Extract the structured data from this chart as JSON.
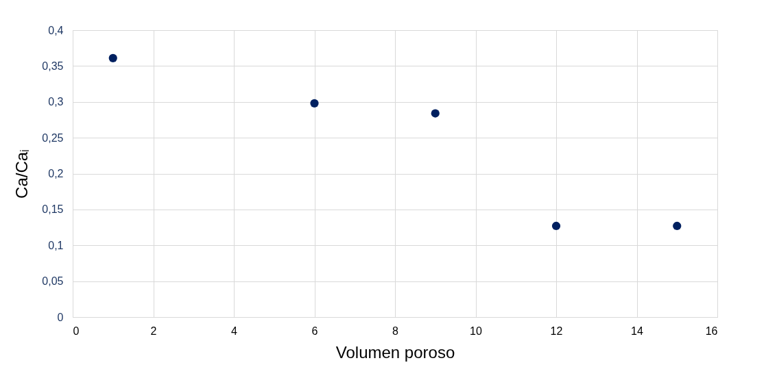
{
  "chart_data": {
    "type": "scatter",
    "xlabel": "Volumen poroso",
    "ylabel": "Ca/Caᵢ",
    "x": [
      1,
      6,
      9,
      12,
      15
    ],
    "series": [
      {
        "color": "#002060",
        "values": [
          0.361,
          0.298,
          0.284,
          0.127,
          0.127
        ]
      }
    ],
    "xlim": [
      0,
      16
    ],
    "xticks": [
      0,
      2,
      4,
      6,
      8,
      10,
      12,
      14,
      16
    ],
    "ylim": [
      0,
      0.4
    ],
    "yticks": [
      0,
      {
        "value": 0.05,
        "label": "0,05"
      },
      {
        "value": 0.1,
        "label": "0,1"
      },
      {
        "value": 0.15,
        "label": "0,15"
      },
      {
        "value": 0.2,
        "label": "0,2"
      },
      {
        "value": 0.25,
        "label": "0,25"
      },
      {
        "value": 0.3,
        "label": "0,3"
      },
      {
        "value": 0.35,
        "label": "0,35"
      },
      {
        "value": 0.4,
        "label": "0,4"
      }
    ],
    "grid": true,
    "marker": "circle",
    "legend": false
  }
}
